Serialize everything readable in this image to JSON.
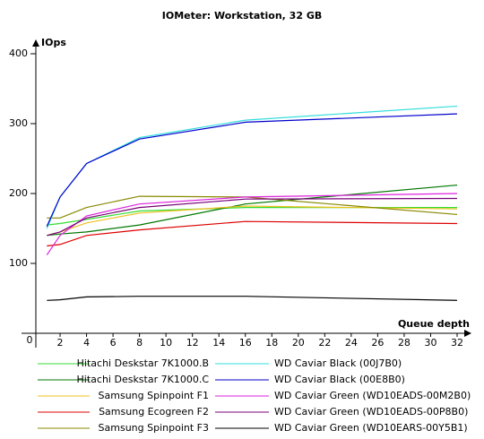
{
  "chart_data": {
    "type": "line",
    "title": "IOMeter: Workstation, 32 GB",
    "x_label": "Queue depth",
    "y_label": "IOps",
    "x": [
      1,
      2,
      4,
      8,
      16,
      32
    ],
    "xlim": [
      0,
      32
    ],
    "xticks": [
      2,
      4,
      6,
      8,
      10,
      12,
      14,
      16,
      18,
      20,
      22,
      24,
      26,
      28,
      30,
      32
    ],
    "ylim": [
      0,
      400
    ],
    "yticks": [
      0,
      100,
      200,
      300,
      400
    ],
    "series": [
      {
        "name": "Hitachi Deskstar 7K1000.B",
        "color": "#33dd33",
        "values": [
          155,
          157,
          163,
          175,
          180,
          180
        ]
      },
      {
        "name": "Hitachi Deskstar 7K1000.C",
        "color": "#007700",
        "values": [
          140,
          142,
          145,
          155,
          185,
          212
        ]
      },
      {
        "name": "Samsung Spinpoint F1",
        "color": "#f0c020",
        "values": [
          140,
          145,
          158,
          172,
          182,
          178
        ]
      },
      {
        "name": "Samsung Ecogreen F2",
        "color": "#dd0000",
        "values": [
          125,
          127,
          140,
          148,
          160,
          157
        ]
      },
      {
        "name": "Samsung Spinpoint F3",
        "color": "#888800",
        "values": [
          165,
          165,
          180,
          196,
          195,
          170
        ]
      },
      {
        "name": "WD Caviar Black (00J7B0)",
        "color": "#33dddd",
        "values": [
          150,
          195,
          243,
          280,
          305,
          325
        ]
      },
      {
        "name": "WD Caviar Black (00E8B0)",
        "color": "#0000cc",
        "values": [
          153,
          195,
          243,
          278,
          302,
          314
        ]
      },
      {
        "name": "WD Caviar Green (WD10EADS-00M2B0)",
        "color": "#dd22dd",
        "values": [
          112,
          140,
          168,
          185,
          195,
          200
        ]
      },
      {
        "name": "WD Caviar Green (WD10EADS-00P8B0)",
        "color": "#770077",
        "values": [
          140,
          145,
          165,
          180,
          192,
          193
        ]
      },
      {
        "name": "WD Caviar Green (WD10EARS-00Y5B1)",
        "color": "#000000",
        "values": [
          47,
          48,
          52,
          53,
          53,
          47
        ]
      }
    ]
  }
}
